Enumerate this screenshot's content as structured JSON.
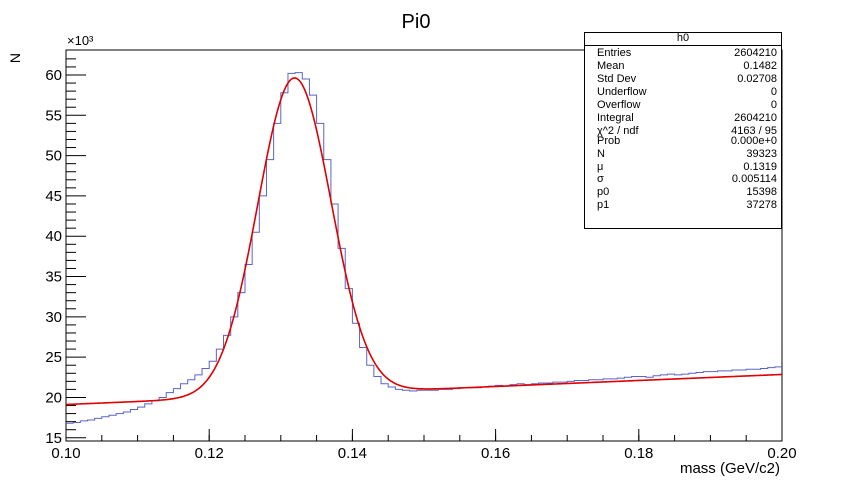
{
  "title": "Pi0",
  "ylabel": "N",
  "xlabel": "mass (GeV/c2)",
  "y_multiplier": "×10³",
  "stats_box": {
    "title": "h0",
    "rows": [
      {
        "key": "Entries",
        "value": "2604210"
      },
      {
        "key": "Mean",
        "value": "0.1482"
      },
      {
        "key": "Std Dev",
        "value": "0.02708"
      },
      {
        "key": "Underflow",
        "value": "0"
      },
      {
        "key": "Overflow",
        "value": "0"
      },
      {
        "key": "Integral",
        "value": "2604210"
      },
      {
        "key": "χ^2 / ndf",
        "value": "4163 / 95"
      },
      {
        "key": "Prob",
        "value": "0.000e+0"
      },
      {
        "key": "N",
        "value": "39323"
      },
      {
        "key": "μ",
        "value": "0.1319"
      },
      {
        "key": "σ",
        "value": "0.005114"
      },
      {
        "key": "p0",
        "value": "15398"
      },
      {
        "key": "p1",
        "value": "37278"
      }
    ]
  },
  "colors": {
    "histogram": "#5a64c8",
    "fit": "#e00000",
    "axis": "#000000"
  },
  "chart_data": {
    "type": "line",
    "title": "Pi0",
    "xlabel": "mass (GeV/c2)",
    "ylabel": "N",
    "xlim": [
      0.1,
      0.2
    ],
    "ylim": [
      14.6,
      63.1
    ],
    "x_ticks": [
      "0.10",
      "0.12",
      "0.14",
      "0.16",
      "0.18",
      "0.20"
    ],
    "y_ticks": [
      "15",
      "20",
      "25",
      "30",
      "35",
      "40",
      "45",
      "50",
      "55",
      "60"
    ],
    "series": [
      {
        "kind": "histogram",
        "bin_width": 0.001,
        "x_start": 0.1,
        "values": [
          16.8,
          16.9,
          17.1,
          17.2,
          17.4,
          17.6,
          17.8,
          18.0,
          18.2,
          18.5,
          18.8,
          19.2,
          19.6,
          20.0,
          20.6,
          21.1,
          21.7,
          22.2,
          22.8,
          23.6,
          24.5,
          26.0,
          27.7,
          30.0,
          33.0,
          36.5,
          40.5,
          45.0,
          49.5,
          54.0,
          57.8,
          60.2,
          60.3,
          59.5,
          57.5,
          54.0,
          49.5,
          44.0,
          38.5,
          33.5,
          29.2,
          26.2,
          24.0,
          22.6,
          21.7,
          21.3,
          21.0,
          20.9,
          20.8,
          20.9,
          20.9,
          20.9,
          21.0,
          21.0,
          21.1,
          21.2,
          21.2,
          21.2,
          21.3,
          21.4,
          21.5,
          21.4,
          21.6,
          21.7,
          21.6,
          21.7,
          21.8,
          21.8,
          21.9,
          21.9,
          22.0,
          22.1,
          22.1,
          22.2,
          22.2,
          22.3,
          22.3,
          22.4,
          22.5,
          22.6,
          22.6,
          22.5,
          22.7,
          22.8,
          22.9,
          22.8,
          22.9,
          23.0,
          23.1,
          23.2,
          23.2,
          23.3,
          23.3,
          23.4,
          23.4,
          23.5,
          23.5,
          23.6,
          23.7,
          23.8
        ]
      },
      {
        "kind": "fit",
        "function": "gaus + pol1",
        "N": 39323,
        "mu": 0.1319,
        "sigma": 0.005114,
        "p0": 15398,
        "p1": 37278
      }
    ]
  }
}
